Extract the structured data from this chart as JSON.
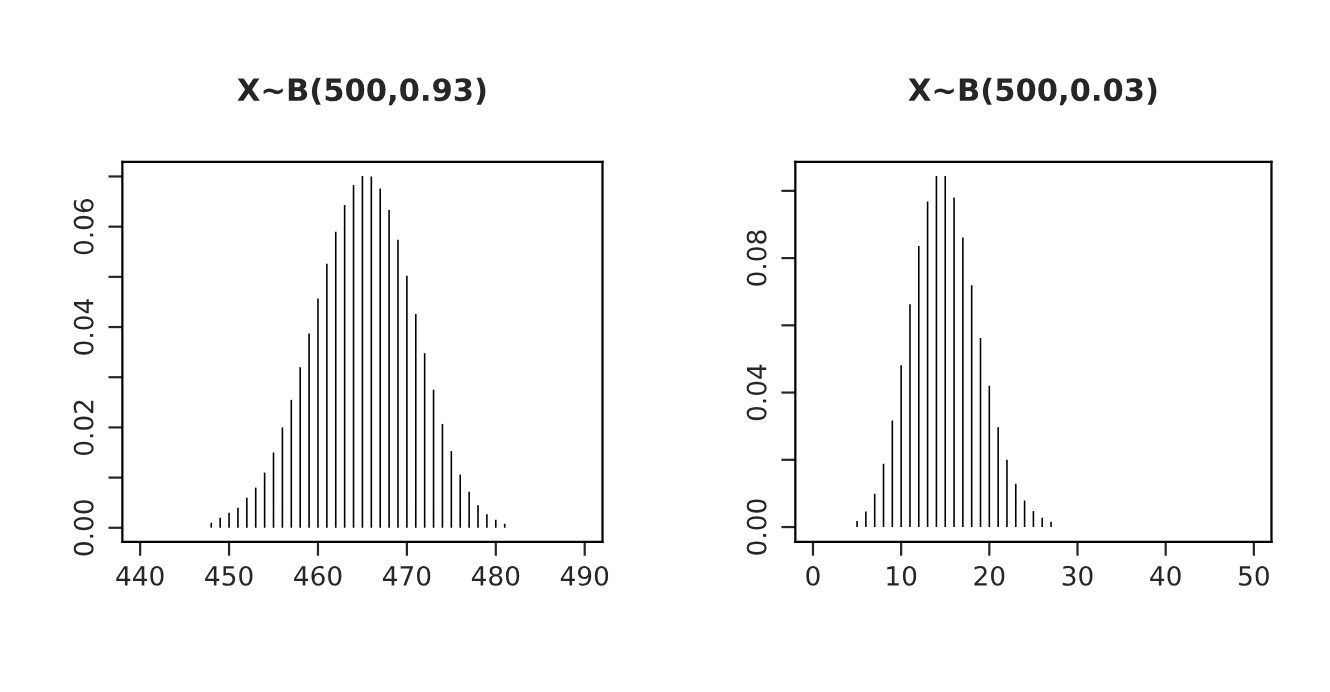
{
  "chart_data": [
    {
      "type": "bar",
      "title": "X~B(500,0.93)",
      "color": "#000000",
      "x": [
        440,
        441,
        442,
        443,
        444,
        445,
        446,
        447,
        448,
        449,
        450,
        451,
        452,
        453,
        454,
        455,
        456,
        457,
        458,
        459,
        460,
        461,
        462,
        463,
        464,
        465,
        466,
        467,
        468,
        469,
        470,
        471,
        472,
        473,
        474,
        475,
        476,
        477,
        478,
        479,
        480,
        481,
        482,
        483,
        484,
        485,
        486,
        487,
        488,
        489,
        490
      ],
      "values": [
        0,
        0,
        0,
        0,
        0,
        0,
        0,
        0,
        0.001,
        0.002,
        0.003,
        0.004,
        0.006,
        0.008,
        0.011,
        0.015,
        0.02,
        0.0255,
        0.032,
        0.0387,
        0.0457,
        0.0526,
        0.059,
        0.0643,
        0.0683,
        0.0701,
        0.07,
        0.0676,
        0.0633,
        0.0574,
        0.0502,
        0.0426,
        0.0348,
        0.0275,
        0.0207,
        0.0153,
        0.0106,
        0.0072,
        0.0045,
        0.0027,
        0.0016,
        0.0008,
        0,
        0,
        0,
        0,
        0,
        0,
        0,
        0,
        0
      ],
      "xlim": [
        438,
        492
      ],
      "xticks": [
        440,
        450,
        460,
        470,
        480,
        490
      ],
      "ylim": [
        -0.0028,
        0.0729
      ],
      "yticks": [
        {
          "value": 0,
          "label": "0.00"
        },
        {
          "value": 0.01,
          "label": null
        },
        {
          "value": 0.02,
          "label": "0.02"
        },
        {
          "value": 0.03,
          "label": null
        },
        {
          "value": 0.04,
          "label": "0.04"
        },
        {
          "value": 0.05,
          "label": null
        },
        {
          "value": 0.06,
          "label": "0.06"
        },
        {
          "value": 0.07,
          "label": null
        }
      ]
    },
    {
      "type": "bar",
      "title": "X~B(500,0.03)",
      "color": "#000000",
      "x": [
        0,
        1,
        2,
        3,
        4,
        5,
        6,
        7,
        8,
        9,
        10,
        11,
        12,
        13,
        14,
        15,
        16,
        17,
        18,
        19,
        20,
        21,
        22,
        23,
        24,
        25,
        26,
        27,
        28,
        29,
        30,
        31,
        32,
        33,
        34,
        35,
        36,
        37,
        38,
        39,
        40,
        41,
        42,
        43,
        44,
        45,
        46,
        47,
        48,
        49,
        50
      ],
      "values": [
        0,
        0,
        0,
        0,
        0,
        0.0018,
        0.0046,
        0.0099,
        0.0188,
        0.0317,
        0.0481,
        0.0663,
        0.0836,
        0.0968,
        0.1044,
        0.1044,
        0.098,
        0.0861,
        0.0719,
        0.0562,
        0.042,
        0.0297,
        0.02,
        0.0129,
        0.0079,
        0.0048,
        0.0028,
        0.0016,
        0,
        0,
        0,
        0,
        0,
        0,
        0,
        0,
        0,
        0,
        0,
        0,
        0,
        0,
        0,
        0,
        0,
        0,
        0,
        0,
        0,
        0,
        0
      ],
      "xlim": [
        -2,
        52
      ],
      "xticks": [
        0,
        10,
        20,
        30,
        40,
        50
      ],
      "ylim": [
        -0.0044,
        0.1086
      ],
      "yticks": [
        {
          "value": 0,
          "label": "0.00"
        },
        {
          "value": 0.02,
          "label": null
        },
        {
          "value": 0.04,
          "label": "0.04"
        },
        {
          "value": 0.06,
          "label": null
        },
        {
          "value": 0.08,
          "label": "0.08"
        },
        {
          "value": 0.1,
          "label": null
        }
      ]
    }
  ]
}
